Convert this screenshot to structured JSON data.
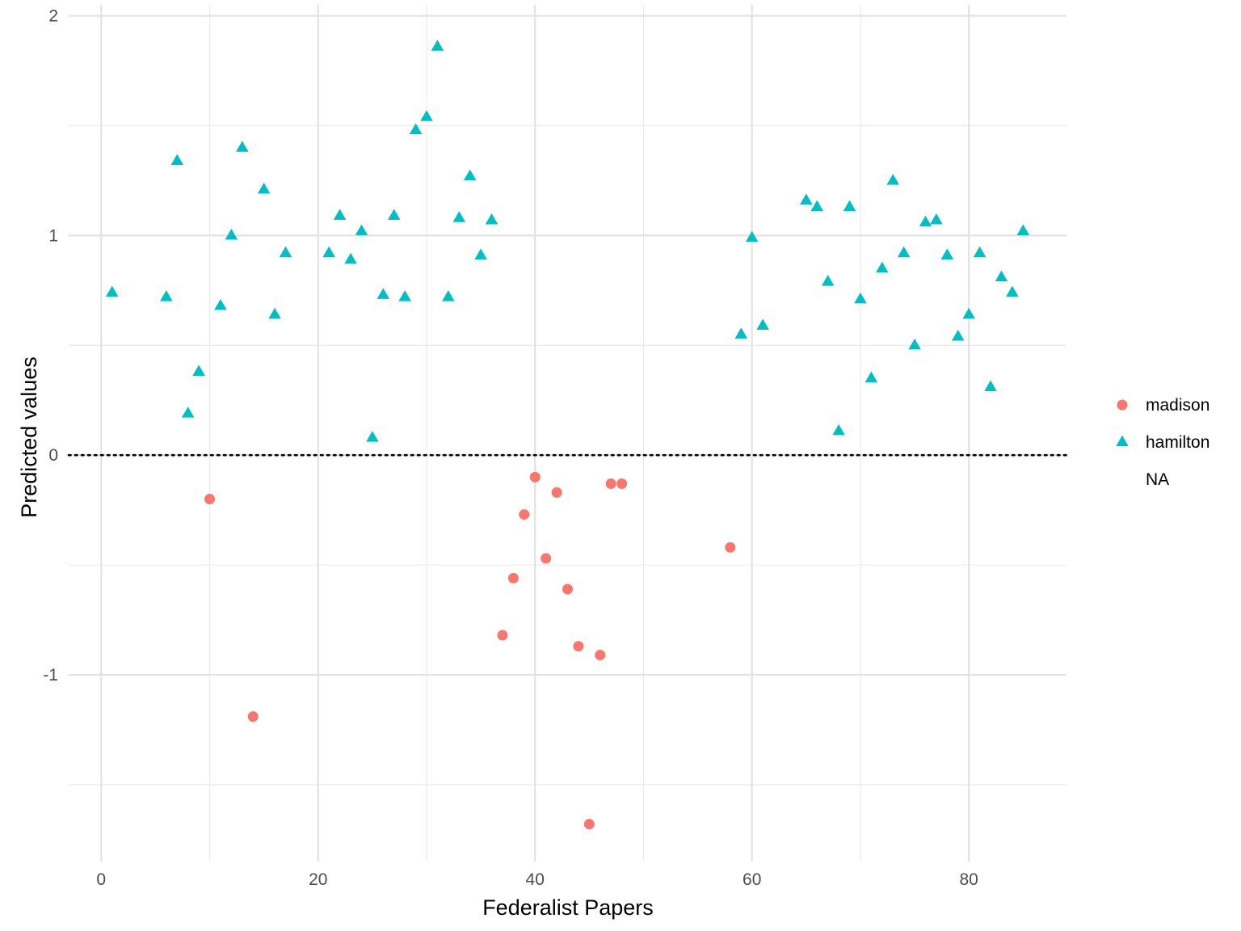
{
  "chart_data": {
    "type": "scatter",
    "xlabel": "Federalist Papers",
    "ylabel": "Predicted values",
    "xlim": [
      -3,
      89
    ],
    "ylim": [
      -1.85,
      2.05
    ],
    "x_ticks": [
      0,
      20,
      40,
      60,
      80
    ],
    "y_ticks": [
      -1,
      0,
      1,
      2
    ],
    "x_tick_labels": [
      "0",
      "20",
      "40",
      "60",
      "80"
    ],
    "y_tick_labels": [
      "-1",
      "0",
      "1",
      "2"
    ],
    "grid": true,
    "reference_line": {
      "y": 0,
      "style": "dotted"
    },
    "legend": {
      "placement": "right",
      "entries": [
        {
          "label": "madison",
          "shape": "circle",
          "color": "#F8766D"
        },
        {
          "label": "hamilton",
          "shape": "triangle",
          "color": "#00BFC4"
        },
        {
          "label": "NA",
          "shape": "none",
          "color": ""
        }
      ]
    },
    "series": [
      {
        "name": "madison",
        "shape": "circle",
        "color": "#F8766D",
        "points": [
          [
            10,
            -0.2
          ],
          [
            14,
            -1.19
          ],
          [
            37,
            -0.82
          ],
          [
            38,
            -0.56
          ],
          [
            39,
            -0.27
          ],
          [
            40,
            -0.1
          ],
          [
            41,
            -0.47
          ],
          [
            42,
            -0.17
          ],
          [
            43,
            -0.61
          ],
          [
            44,
            -0.87
          ],
          [
            45,
            -1.68
          ],
          [
            46,
            -0.91
          ],
          [
            47,
            -0.13
          ],
          [
            48,
            -0.13
          ],
          [
            58,
            -0.42
          ]
        ]
      },
      {
        "name": "hamilton",
        "shape": "triangle",
        "color": "#00BFC4",
        "points": [
          [
            1,
            0.74
          ],
          [
            6,
            0.72
          ],
          [
            7,
            1.34
          ],
          [
            8,
            0.19
          ],
          [
            9,
            0.38
          ],
          [
            11,
            0.68
          ],
          [
            12,
            1.0
          ],
          [
            13,
            1.4
          ],
          [
            15,
            1.21
          ],
          [
            16,
            0.64
          ],
          [
            17,
            0.92
          ],
          [
            21,
            0.92
          ],
          [
            22,
            1.09
          ],
          [
            23,
            0.89
          ],
          [
            24,
            1.02
          ],
          [
            25,
            0.08
          ],
          [
            26,
            0.73
          ],
          [
            27,
            1.09
          ],
          [
            28,
            0.72
          ],
          [
            29,
            1.48
          ],
          [
            30,
            1.54
          ],
          [
            31,
            1.86
          ],
          [
            32,
            0.72
          ],
          [
            33,
            1.08
          ],
          [
            34,
            1.27
          ],
          [
            35,
            0.91
          ],
          [
            36,
            1.07
          ],
          [
            59,
            0.55
          ],
          [
            60,
            0.99
          ],
          [
            61,
            0.59
          ],
          [
            65,
            1.16
          ],
          [
            66,
            1.13
          ],
          [
            67,
            0.79
          ],
          [
            68,
            0.11
          ],
          [
            69,
            1.13
          ],
          [
            70,
            0.71
          ],
          [
            71,
            0.35
          ],
          [
            72,
            0.85
          ],
          [
            73,
            1.25
          ],
          [
            74,
            0.92
          ],
          [
            75,
            0.5
          ],
          [
            76,
            1.06
          ],
          [
            77,
            1.07
          ],
          [
            78,
            0.91
          ],
          [
            79,
            0.54
          ],
          [
            80,
            0.64
          ],
          [
            81,
            0.92
          ],
          [
            82,
            0.31
          ],
          [
            83,
            0.81
          ],
          [
            84,
            0.74
          ],
          [
            85,
            1.02
          ]
        ]
      }
    ]
  }
}
